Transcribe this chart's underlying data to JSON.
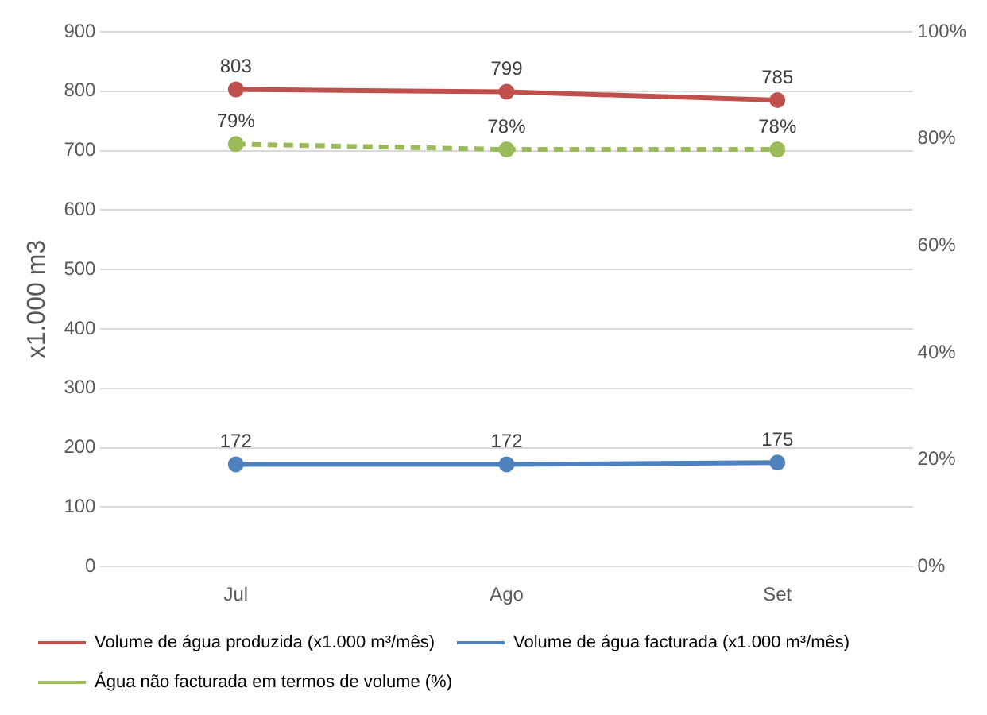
{
  "chart_data": {
    "type": "line",
    "ylabel": "x1.000 m3",
    "categories": [
      "Jul",
      "Ago",
      "Set"
    ],
    "series": [
      {
        "name": "Volume de água produzida (x1.000 m³/mês)",
        "color": "#c0504d",
        "values": [
          803,
          799,
          785
        ],
        "value_labels": [
          "803",
          "799",
          "785"
        ]
      },
      {
        "name": "Volume de água facturada (x1.000 m³/mês)",
        "color": "#4f81bd",
        "values": [
          172,
          172,
          175
        ],
        "value_labels": [
          "172",
          "172",
          "175"
        ]
      },
      {
        "name": "Água não facturada em termos de volume (%)",
        "color": "#9bbb59",
        "values": [
          79,
          78,
          78
        ],
        "axis": "y2",
        "line_style": "dashed",
        "value_labels": [
          "79%",
          "78%",
          "78%"
        ]
      }
    ],
    "ylim": [
      0,
      900
    ],
    "yticks": [
      0,
      100,
      200,
      300,
      400,
      500,
      600,
      700,
      800,
      900
    ],
    "y2lim": [
      0,
      100
    ],
    "y2ticks": [
      {
        "value": 0,
        "label": "0%"
      },
      {
        "value": 20,
        "label": "20%"
      },
      {
        "value": 40,
        "label": "40%"
      },
      {
        "value": 60,
        "label": "60%"
      },
      {
        "value": 80,
        "label": "80%"
      },
      {
        "value": 100,
        "label": "100%"
      }
    ],
    "grid": "y",
    "legend": "bottom",
    "marker": "circle"
  }
}
